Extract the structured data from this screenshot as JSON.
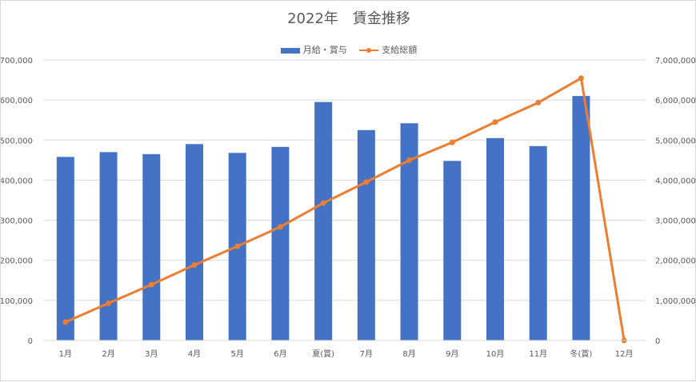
{
  "chart_data": {
    "type": "bar",
    "title": "2022年　賃金推移",
    "categories": [
      "1月",
      "2月",
      "3月",
      "4月",
      "5月",
      "6月",
      "夏(賞)",
      "7月",
      "8月",
      "9月",
      "10月",
      "11月",
      "冬(賞)",
      "12月"
    ],
    "series": [
      {
        "name": "月給・賞与",
        "type": "bar",
        "axis": "left",
        "color": "#4472C4",
        "values": [
          458000,
          470000,
          465000,
          490000,
          468000,
          483000,
          595000,
          525000,
          542000,
          448000,
          505000,
          485000,
          610000,
          null
        ]
      },
      {
        "name": "支給総額",
        "type": "line",
        "axis": "right",
        "color": "#ED7D31",
        "values": [
          458000,
          928000,
          1393000,
          1883000,
          2351000,
          2834000,
          3429000,
          3954000,
          4496000,
          4944000,
          5449000,
          5934000,
          6544000,
          0
        ]
      }
    ],
    "y_left": {
      "min": 0,
      "max": 700000,
      "ticks": [
        "0",
        "100,000",
        "200,000",
        "300,000",
        "400,000",
        "500,000",
        "600,000",
        "700,000"
      ]
    },
    "y_right": {
      "min": 0,
      "max": 7000000,
      "ticks": [
        "0",
        "1,000,000",
        "2,000,000",
        "3,000,000",
        "4,000,000",
        "5,000,000",
        "6,000,000",
        "7,000,000"
      ]
    },
    "grid": true,
    "legend_position": "top"
  }
}
